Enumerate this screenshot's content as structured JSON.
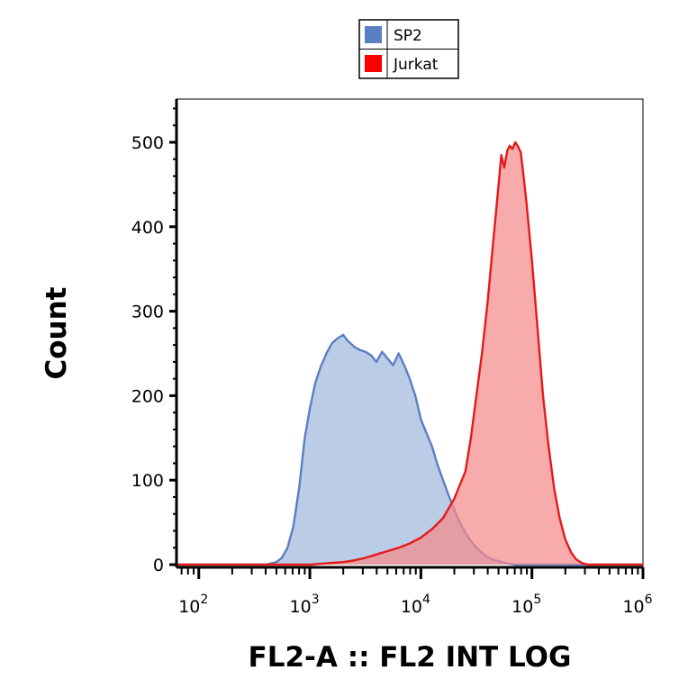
{
  "chart_data": {
    "type": "area",
    "xscale": "log",
    "xlabel": "FL2-A :: FL2 INT LOG",
    "ylabel": "Count",
    "xlim": [
      63,
      1000000
    ],
    "ylim": [
      0,
      550
    ],
    "x_ticks": [
      {
        "value": 100,
        "base": "10",
        "exp": "2"
      },
      {
        "value": 1000,
        "base": "10",
        "exp": "3"
      },
      {
        "value": 10000,
        "base": "10",
        "exp": "4"
      },
      {
        "value": 100000,
        "base": "10",
        "exp": "5"
      },
      {
        "value": 1000000,
        "base": "10",
        "exp": "6"
      }
    ],
    "y_ticks": [
      {
        "value": 0,
        "label": "0"
      },
      {
        "value": 100,
        "label": "100"
      },
      {
        "value": 200,
        "label": "200"
      },
      {
        "value": 300,
        "label": "300"
      },
      {
        "value": 400,
        "label": "400"
      },
      {
        "value": 500,
        "label": "500"
      }
    ],
    "legend_position": "top-center",
    "series": [
      {
        "name": "SP2",
        "color": "#5b7fc2",
        "fill": "#b7c9e6",
        "x": [
          63,
          400,
          500,
          560,
          630,
          710,
          800,
          900,
          1000,
          1120,
          1260,
          1410,
          1580,
          1780,
          2000,
          2100,
          2240,
          2510,
          2820,
          3160,
          3550,
          3980,
          4470,
          5010,
          5620,
          6310,
          7080,
          7940,
          8910,
          10000,
          11220,
          12590,
          14130,
          15850,
          17780,
          19950,
          22390,
          25120,
          28180,
          31620,
          35480,
          39810,
          44670,
          50120,
          56230,
          63100,
          70800,
          79400,
          89100,
          100000,
          1000000
        ],
        "y": [
          0,
          0,
          3,
          8,
          20,
          45,
          90,
          150,
          185,
          215,
          235,
          250,
          262,
          268,
          272,
          268,
          264,
          258,
          254,
          252,
          248,
          240,
          252,
          244,
          236,
          250,
          236,
          220,
          200,
          172,
          156,
          140,
          118,
          100,
          82,
          65,
          50,
          38,
          28,
          20,
          14,
          9,
          6,
          4,
          2,
          1,
          0,
          0,
          0,
          0,
          0
        ]
      },
      {
        "name": "Jurkat",
        "color": "#e41a1a",
        "fill": "#f58a8a",
        "x": [
          63,
          1000,
          1260,
          1580,
          2000,
          2510,
          3160,
          3980,
          5010,
          6310,
          7940,
          10000,
          12590,
          15850,
          19950,
          25120,
          28180,
          31620,
          35480,
          39810,
          44670,
          50120,
          53000,
          56230,
          60000,
          63100,
          66800,
          70800,
          75000,
          79400,
          84100,
          89100,
          100000,
          112200,
          125900,
          141300,
          158500,
          177800,
          199500,
          223900,
          251200,
          281800,
          316200,
          1000000
        ],
        "y": [
          0,
          0,
          1,
          2,
          3,
          5,
          8,
          12,
          16,
          20,
          25,
          32,
          42,
          55,
          78,
          110,
          150,
          200,
          250,
          310,
          380,
          450,
          485,
          470,
          490,
          496,
          492,
          500,
          495,
          488,
          460,
          430,
          360,
          280,
          200,
          140,
          90,
          55,
          30,
          15,
          6,
          2,
          0,
          0
        ]
      }
    ]
  }
}
